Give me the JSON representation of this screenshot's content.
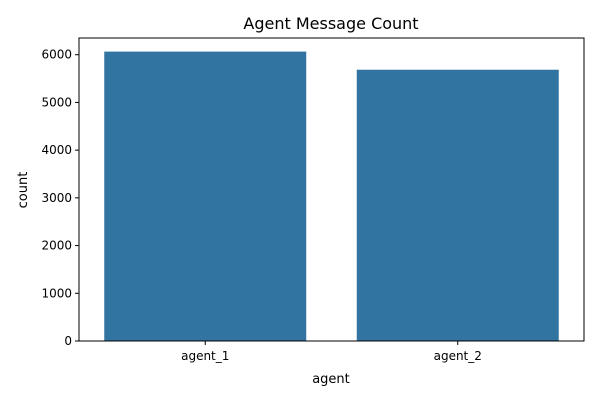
{
  "chart_data": {
    "type": "bar",
    "title": "Agent Message Count",
    "xlabel": "agent",
    "ylabel": "count",
    "categories": [
      "agent_1",
      "agent_2"
    ],
    "values": [
      6065,
      5685
    ],
    "ylim": [
      0,
      6350
    ],
    "yticks": [
      0,
      1000,
      2000,
      3000,
      4000,
      5000,
      6000
    ],
    "grid": false,
    "bar_color": "#3274a1"
  }
}
